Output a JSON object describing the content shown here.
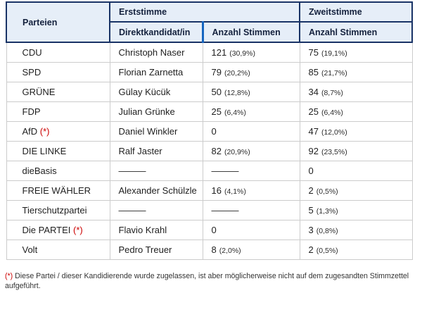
{
  "table": {
    "header": {
      "parteien": "Parteien",
      "erststimme": "Erststimme",
      "zweitstimme": "Zweitstimme",
      "direktkandidat": "Direktkandidat/in",
      "anzahl_erst": "Anzahl Stimmen",
      "anzahl_zweit": "Anzahl Stimmen"
    },
    "rows": [
      {
        "party": "CDU",
        "asterisk": false,
        "candidate": "Christoph Naser",
        "erst_votes": "121",
        "erst_pct": "(30,9%)",
        "zweit_votes": "75",
        "zweit_pct": "(19,1%)"
      },
      {
        "party": "SPD",
        "asterisk": false,
        "candidate": "Florian Zarnetta",
        "erst_votes": "79",
        "erst_pct": "(20,2%)",
        "zweit_votes": "85",
        "zweit_pct": "(21,7%)"
      },
      {
        "party": "GRÜNE",
        "asterisk": false,
        "candidate": "Gülay Kücük",
        "erst_votes": "50",
        "erst_pct": "(12,8%)",
        "zweit_votes": "34",
        "zweit_pct": "(8,7%)"
      },
      {
        "party": "FDP",
        "asterisk": false,
        "candidate": "Julian Grünke",
        "erst_votes": "25",
        "erst_pct": "(6,4%)",
        "zweit_votes": "25",
        "zweit_pct": "(6,4%)"
      },
      {
        "party": "AfD",
        "asterisk": true,
        "candidate": "Daniel Winkler",
        "erst_votes": "0",
        "erst_pct": "",
        "zweit_votes": "47",
        "zweit_pct": "(12,0%)"
      },
      {
        "party": "DIE LINKE",
        "asterisk": false,
        "candidate": "Ralf Jaster",
        "erst_votes": "82",
        "erst_pct": "(20,9%)",
        "zweit_votes": "92",
        "zweit_pct": "(23,5%)"
      },
      {
        "party": "dieBasis",
        "asterisk": false,
        "candidate": "———",
        "erst_votes": "———",
        "erst_pct": "",
        "zweit_votes": "0",
        "zweit_pct": ""
      },
      {
        "party": "FREIE WÄHLER",
        "asterisk": false,
        "candidate": "Alexander Schülzle",
        "erst_votes": "16",
        "erst_pct": "(4,1%)",
        "zweit_votes": "2",
        "zweit_pct": "(0,5%)"
      },
      {
        "party": "Tierschutzpartei",
        "asterisk": false,
        "candidate": "———",
        "erst_votes": "———",
        "erst_pct": "",
        "zweit_votes": "5",
        "zweit_pct": "(1,3%)"
      },
      {
        "party": "Die PARTEI",
        "asterisk": true,
        "candidate": "Flavio Krahl",
        "erst_votes": "0",
        "erst_pct": "",
        "zweit_votes": "3",
        "zweit_pct": "(0,8%)"
      },
      {
        "party": "Volt",
        "asterisk": false,
        "candidate": "Pedro Treuer",
        "erst_votes": "8",
        "erst_pct": "(2,0%)",
        "zweit_votes": "2",
        "zweit_pct": "(0,5%)"
      }
    ]
  },
  "footnote": {
    "marker": "(*)",
    "text": "Diese Partei / dieser Kandidierende wurde zugelassen, ist aber möglicherweise nicht auf dem zugesandten Stimmzettel aufgeführt."
  },
  "colors": {
    "header_bg": "#e6eef8",
    "header_border": "#193366",
    "sub_divider_blue": "#1565c0",
    "body_border": "#cccccc",
    "footnote_red": "#cc0000"
  }
}
